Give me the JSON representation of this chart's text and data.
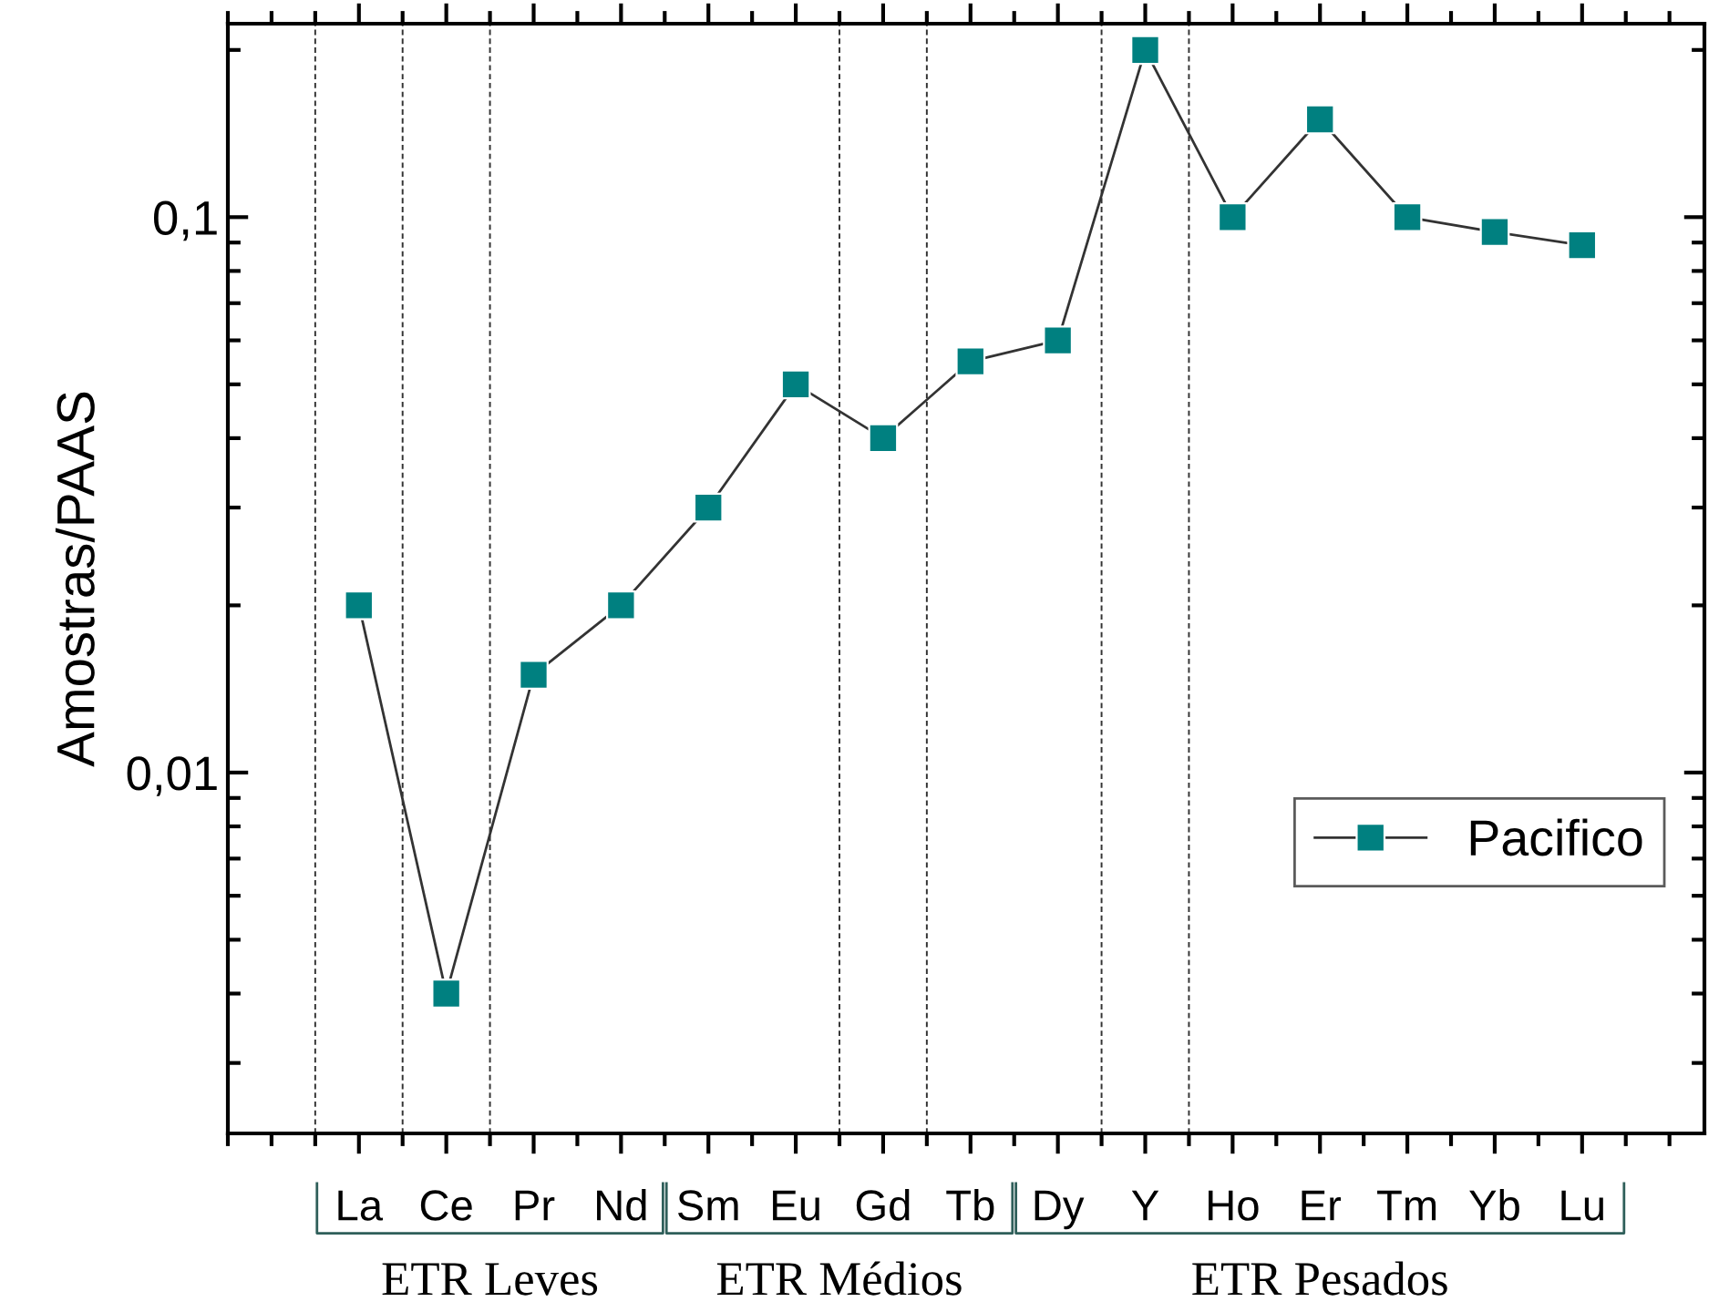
{
  "chart_data": {
    "type": "line",
    "ylabel": "Amostras/PAAS",
    "categories": [
      "La",
      "Ce",
      "Pr",
      "Nd",
      "Sm",
      "Eu",
      "Gd",
      "Tb",
      "Dy",
      "Y",
      "Ho",
      "Er",
      "Tm",
      "Yb",
      "Lu"
    ],
    "series": [
      {
        "name": "Pacifico",
        "color": "#008080",
        "values": [
          0.02,
          0.004,
          0.015,
          0.02,
          0.03,
          0.05,
          0.04,
          0.055,
          0.06,
          0.2,
          0.1,
          0.15,
          0.1,
          0.094,
          0.089
        ]
      }
    ],
    "log": "y",
    "ylim": [
      0.00224,
      0.223
    ],
    "yticks": [
      {
        "value": 0.01,
        "label": "0,01"
      },
      {
        "value": 0.1,
        "label": "0,1"
      }
    ],
    "marker": "square",
    "line_style": "solid",
    "grid": false,
    "legend": "lower right",
    "annotations": [
      "ETR Leves",
      "ETR Médios",
      "ETR Pesados"
    ]
  }
}
